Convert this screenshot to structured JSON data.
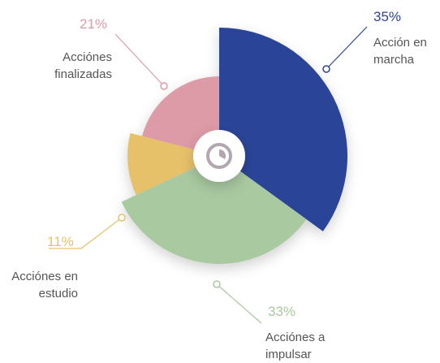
{
  "chart_data": {
    "type": "pie",
    "categories": [
      "Acción en marcha",
      "Acciónes a impulsar",
      "Acciónes en estudio",
      "Acciónes finalizadas"
    ],
    "values": [
      35,
      33,
      11,
      21
    ],
    "value_labels": [
      "35%",
      "33%",
      "11%",
      "21%"
    ],
    "colors": [
      "#2b4497",
      "#a9c9a1",
      "#e7c06a",
      "#dc9ba6"
    ]
  }
}
